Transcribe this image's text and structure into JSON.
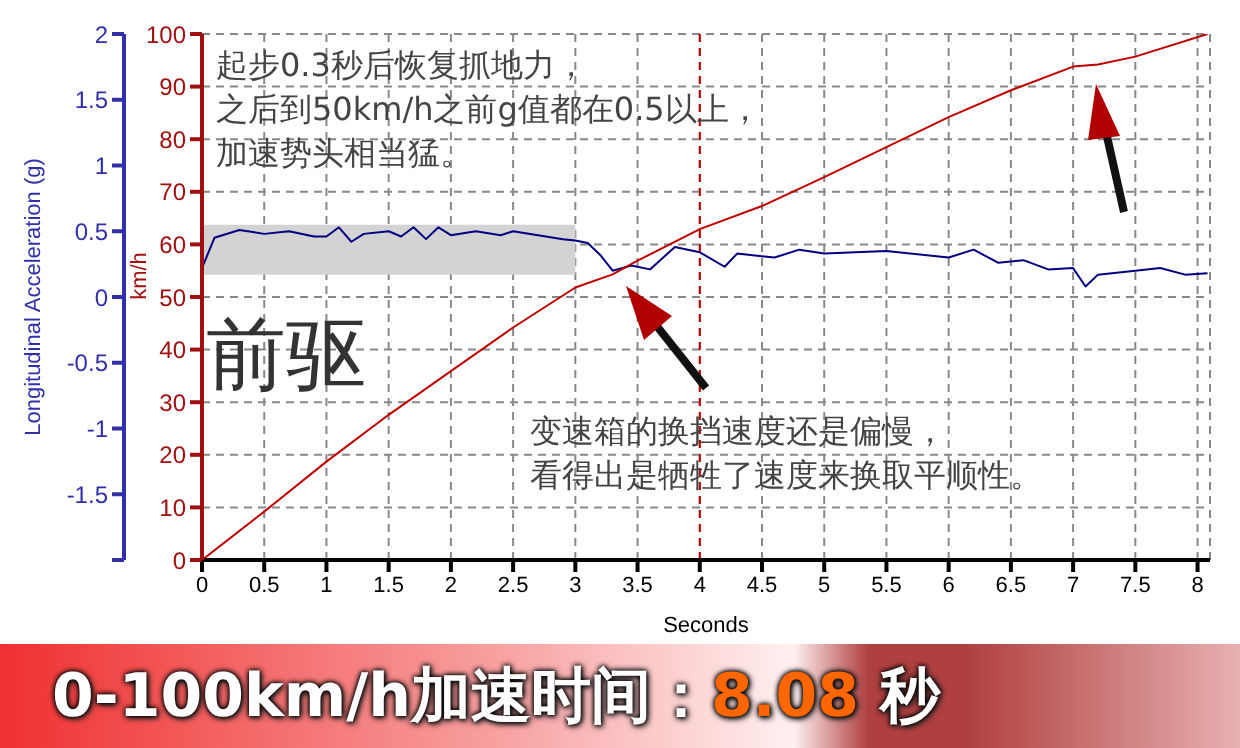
{
  "chart_data": {
    "type": "line",
    "xlabel": "Seconds",
    "ylabel": "Longitudinal Acceleration (g)",
    "y2label": "km/h",
    "xlim": [
      0,
      8.1
    ],
    "xticks": [
      0,
      0.5,
      1,
      1.5,
      2,
      2.5,
      3,
      3.5,
      4,
      4.5,
      5,
      5.5,
      6,
      6.5,
      7,
      7.5,
      8
    ],
    "ylim": [
      -2,
      2
    ],
    "yticks": [
      {
        "value": -2,
        "label": null
      },
      -1.5,
      -1,
      -0.5,
      0,
      0.5,
      1,
      1.5,
      2
    ],
    "y2lim": [
      0,
      100
    ],
    "y2ticks": [
      0,
      10,
      20,
      30,
      40,
      50,
      60,
      70,
      80,
      90,
      100
    ],
    "grid": true,
    "legend": false,
    "marker": "none",
    "line_style": "solid",
    "series": [
      {
        "color": "#000080",
        "x": [
          0,
          0.1,
          0.3,
          0.5,
          0.7,
          0.9,
          1.0,
          1.1,
          1.2,
          1.3,
          1.5,
          1.6,
          1.7,
          1.8,
          1.9,
          2.0,
          2.2,
          2.4,
          2.5,
          2.7,
          2.9,
          3.0,
          3.1,
          3.2,
          3.3,
          3.45,
          3.6,
          3.8,
          4.0,
          4.2,
          4.3,
          4.6,
          4.8,
          5.0,
          5.5,
          6.0,
          6.2,
          6.4,
          6.6,
          6.8,
          7.0,
          7.1,
          7.2,
          7.5,
          7.7,
          7.9,
          8.08
        ],
        "values": [
          0.22,
          0.45,
          0.51,
          0.48,
          0.5,
          0.46,
          0.46,
          0.53,
          0.42,
          0.48,
          0.5,
          0.46,
          0.53,
          0.44,
          0.53,
          0.47,
          0.5,
          0.47,
          0.5,
          0.47,
          0.44,
          0.43,
          0.41,
          0.32,
          0.2,
          0.24,
          0.21,
          0.38,
          0.34,
          0.23,
          0.33,
          0.3,
          0.36,
          0.33,
          0.35,
          0.3,
          0.36,
          0.26,
          0.28,
          0.21,
          0.22,
          0.08,
          0.17,
          0.2,
          0.22,
          0.17,
          0.18
        ]
      },
      {
        "color": "#c00000",
        "axis": "y2",
        "x": [
          0,
          0.5,
          1,
          1.5,
          2,
          2.5,
          3,
          3.3,
          3.5,
          4,
          4.5,
          5,
          5.5,
          6,
          6.5,
          7,
          7.2,
          7.5,
          8.08
        ],
        "values": [
          0,
          9.2,
          18.7,
          27.6,
          35.9,
          44.2,
          51.8,
          54.3,
          56.9,
          62.9,
          67.3,
          72.8,
          78.5,
          84.2,
          89.3,
          93.8,
          94.2,
          95.7,
          100
        ]
      }
    ],
    "ref_lines": [
      {
        "axis": "x",
        "value": 4,
        "color": "#c00000",
        "line_style": "dashed"
      }
    ],
    "bands": [
      {
        "axis": "x",
        "from": 0,
        "to": 3,
        "color": "#d3d3d3"
      }
    ],
    "annotations": [
      "起步0.3秒后恢复抓地力，之后到50km/h之前g值都在0.5以上，加速势头相当猛。",
      "前驱",
      "变速箱的换挡速度还是偏慢，看得出是牺牲了速度来换取平顺性。",
      "0-100km/h加速时间：8.08 秒"
    ]
  }
}
